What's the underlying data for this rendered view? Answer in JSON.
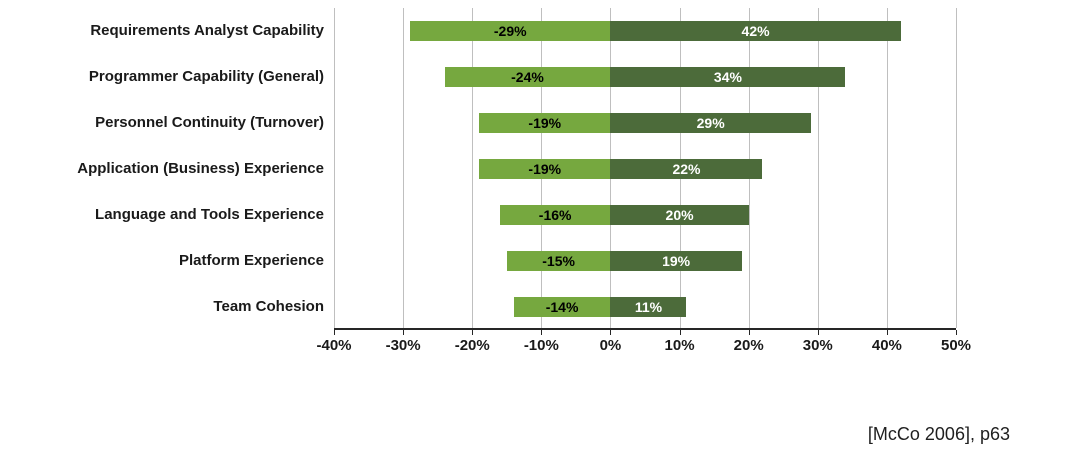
{
  "chart_data": {
    "type": "bar",
    "orientation": "horizontal-diverging",
    "categories": [
      "Requirements Analyst Capability",
      "Programmer Capability (General)",
      "Personnel Continuity (Turnover)",
      "Application (Business) Experience",
      "Language and Tools Experience",
      "Platform Experience",
      "Team Cohesion"
    ],
    "series": [
      {
        "name": "negative-impact",
        "values": [
          -29,
          -24,
          -19,
          -19,
          -16,
          -15,
          -14
        ],
        "color": "#76a83f",
        "label_color": "#000000"
      },
      {
        "name": "positive-impact",
        "values": [
          42,
          34,
          29,
          22,
          20,
          19,
          11
        ],
        "color": "#4c6b3a",
        "label_color": "#ffffff"
      }
    ],
    "xlim": [
      -40,
      50
    ],
    "x_tick_values": [
      -40,
      -30,
      -20,
      -10,
      0,
      10,
      20,
      30,
      40,
      50
    ],
    "x_tick_labels": [
      "-40%",
      "-30%",
      "-20%",
      "-10%",
      "0%",
      "10%",
      "20%",
      "30%",
      "40%",
      "50%"
    ],
    "grid": true,
    "gridline_color": "#bfbfbf",
    "axis_color": "#262626",
    "title": "",
    "xlabel": "",
    "ylabel": ""
  },
  "citation": "[McCo 2006], p63"
}
